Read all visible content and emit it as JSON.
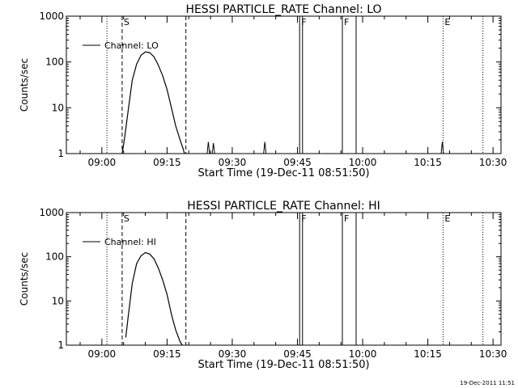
{
  "footer_date": "19-Dec-2011 11:51",
  "chart_data": [
    {
      "type": "line",
      "title": "HESSI PARTICLE_RATE Channel: LO",
      "xlabel": "Start Time (19-Dec-11 08:51:50)",
      "ylabel": "Counts/sec",
      "y_scale": "log",
      "xlim": [
        "08:51:50",
        "10:31:50"
      ],
      "ylim": [
        1,
        1000
      ],
      "x_ticks": [
        "09:00",
        "09:15",
        "09:30",
        "09:45",
        "10:00",
        "10:15",
        "10:30"
      ],
      "y_ticks": [
        "1",
        "10",
        "100",
        "1000"
      ],
      "legend": {
        "entry": "Channel: LO",
        "placement": "top-left"
      },
      "markers": [
        {
          "label": "S",
          "time": "09:04:40",
          "style": "dashed"
        },
        {
          "label": "F",
          "time": "09:45:30",
          "style": "solid"
        },
        {
          "label": "F",
          "time": "09:55:20",
          "style": "solid"
        },
        {
          "label": "E",
          "time": "10:18:30",
          "style": "dotted"
        }
      ],
      "other_lines": [
        {
          "time": "09:01:10",
          "style": "dotted"
        },
        {
          "time": "09:19:20",
          "style": "dashed"
        },
        {
          "time": "09:46:10",
          "style": "solid"
        },
        {
          "time": "09:58:30",
          "style": "solid"
        },
        {
          "time": "10:27:40",
          "style": "dotted"
        }
      ],
      "series": [
        {
          "name": "Channel: LO",
          "x": [
            "09:04:40",
            "09:05:10",
            "09:06:00",
            "09:07:00",
            "09:08:00",
            "09:09:00",
            "09:10:00",
            "09:11:00",
            "09:12:00",
            "09:13:00",
            "09:14:00",
            "09:15:00",
            "09:16:00",
            "09:17:00",
            "09:18:00",
            "09:18:40",
            "09:19:00"
          ],
          "y": [
            1,
            2,
            8,
            40,
            90,
            140,
            165,
            160,
            130,
            85,
            50,
            25,
            10,
            4,
            2,
            1.3,
            1
          ]
        }
      ],
      "spikes": [
        {
          "time": "09:24:30",
          "peak": 1.8
        },
        {
          "time": "09:25:40",
          "peak": 1.7
        },
        {
          "time": "09:37:30",
          "peak": 1.8
        },
        {
          "time": "10:18:20",
          "peak": 1.8
        }
      ]
    },
    {
      "type": "line",
      "title": "HESSI PARTICLE_RATE Channel: HI",
      "xlabel": "Start Time (19-Dec-11 08:51:50)",
      "ylabel": "Counts/sec",
      "y_scale": "log",
      "xlim": [
        "08:51:50",
        "10:31:50"
      ],
      "ylim": [
        1,
        1000
      ],
      "x_ticks": [
        "09:00",
        "09:15",
        "09:30",
        "09:45",
        "10:00",
        "10:15",
        "10:30"
      ],
      "y_ticks": [
        "1",
        "10",
        "100",
        "1000"
      ],
      "legend": {
        "entry": "Channel: HI",
        "placement": "top-left"
      },
      "markers": [
        {
          "label": "S",
          "time": "09:04:40",
          "style": "dashed"
        },
        {
          "label": "F",
          "time": "09:45:30",
          "style": "solid"
        },
        {
          "label": "F",
          "time": "09:55:20",
          "style": "solid"
        },
        {
          "label": "E",
          "time": "10:18:30",
          "style": "dotted"
        }
      ],
      "other_lines": [
        {
          "time": "09:01:10",
          "style": "dotted"
        },
        {
          "time": "09:19:20",
          "style": "dashed"
        },
        {
          "time": "09:46:10",
          "style": "solid"
        },
        {
          "time": "09:58:30",
          "style": "solid"
        },
        {
          "time": "10:27:40",
          "style": "dotted"
        }
      ],
      "series": [
        {
          "name": "Channel: HI",
          "x": [
            "09:05:30",
            "09:06:00",
            "09:07:00",
            "09:08:00",
            "09:09:00",
            "09:10:00",
            "09:11:00",
            "09:12:00",
            "09:13:00",
            "09:14:00",
            "09:15:00",
            "09:16:00",
            "09:17:00",
            "09:18:00",
            "09:18:30"
          ],
          "y": [
            1.5,
            4,
            25,
            70,
            105,
            125,
            115,
            90,
            55,
            30,
            14,
            5,
            2.2,
            1.2,
            1
          ]
        }
      ],
      "spikes": []
    }
  ]
}
